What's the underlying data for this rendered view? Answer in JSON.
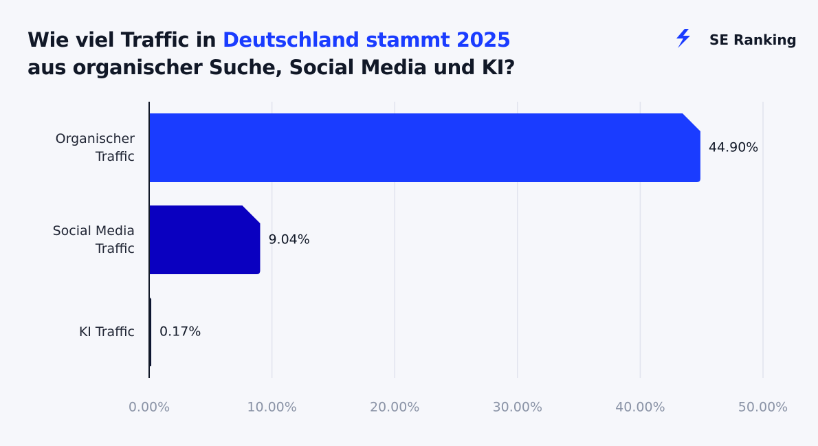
{
  "chart_data": {
    "type": "hbar",
    "title_parts": [
      "Wie viel Traffic in ",
      "Deutschland stammt 2025",
      "aus organischer Suche, Social Media und KI?"
    ],
    "title_colors": [
      "#111827",
      "#1a3cff",
      "#111827"
    ],
    "brand": "SE Ranking",
    "categories": [
      "Organischer Traffic",
      "Social Media Traffic",
      "KI Traffic"
    ],
    "values": [
      44.9,
      9.04,
      0.17
    ],
    "value_labels": [
      "44.90%",
      "9.04%",
      "0.17%"
    ],
    "colors": [
      "#1a3cff",
      "#0a00c0",
      "#0d1530"
    ],
    "xlim": [
      0,
      50
    ],
    "xticks": [
      {
        "value": 0,
        "label": "0.00%"
      },
      {
        "value": 10,
        "label": "10.00%"
      },
      {
        "value": 20,
        "label": "20.00%"
      },
      {
        "value": 30,
        "label": "30.00%"
      },
      {
        "value": 40,
        "label": "40.00%"
      },
      {
        "value": 50,
        "label": "50.00%"
      }
    ],
    "grid": true
  }
}
